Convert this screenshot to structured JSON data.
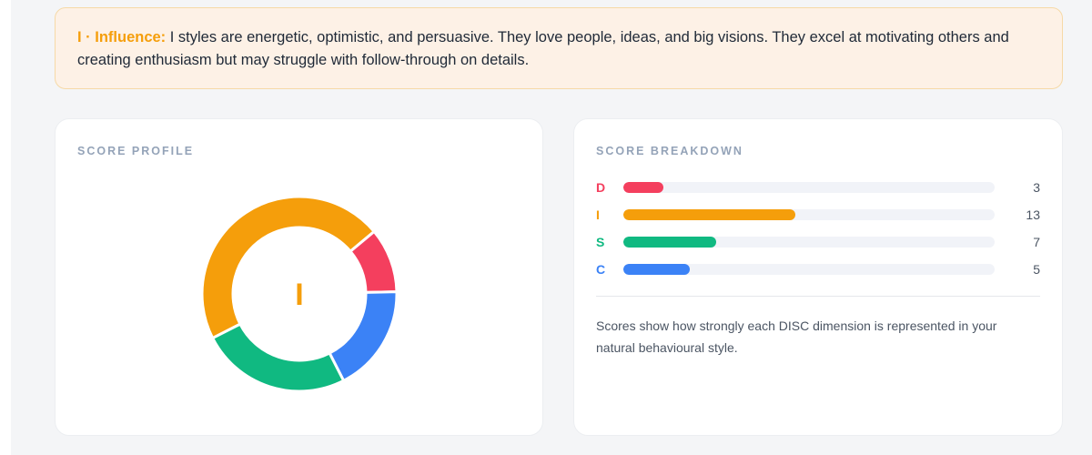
{
  "banner": {
    "lead": "I · Influence:",
    "text": " I styles are energetic, optimistic, and persuasive. They love people, ideas, and big visions. They excel at motivating others and creating enthusiasm but may struggle with follow-through on details."
  },
  "score_profile": {
    "title": "SCORE PROFILE",
    "center_label": "I",
    "center_color": "#f59e0b"
  },
  "score_breakdown": {
    "title": "SCORE BREAKDOWN",
    "max": 28,
    "items": [
      {
        "letter": "D",
        "value": "3",
        "color": "#f43f5e"
      },
      {
        "letter": "I",
        "value": "13",
        "color": "#f59e0b"
      },
      {
        "letter": "S",
        "value": "7",
        "color": "#10b981"
      },
      {
        "letter": "C",
        "value": "5",
        "color": "#3b82f6"
      }
    ],
    "note": "Scores show how strongly each DISC dimension is represented in your natural behavioural style."
  },
  "chart_data": {
    "type": "pie",
    "variant": "donut",
    "categories": [
      "D",
      "I",
      "S",
      "C"
    ],
    "values": [
      3,
      13,
      7,
      5
    ],
    "colors": [
      "#f43f5e",
      "#f59e0b",
      "#10b981",
      "#3b82f6"
    ],
    "center_label": "I",
    "title": "",
    "legend": "none"
  }
}
